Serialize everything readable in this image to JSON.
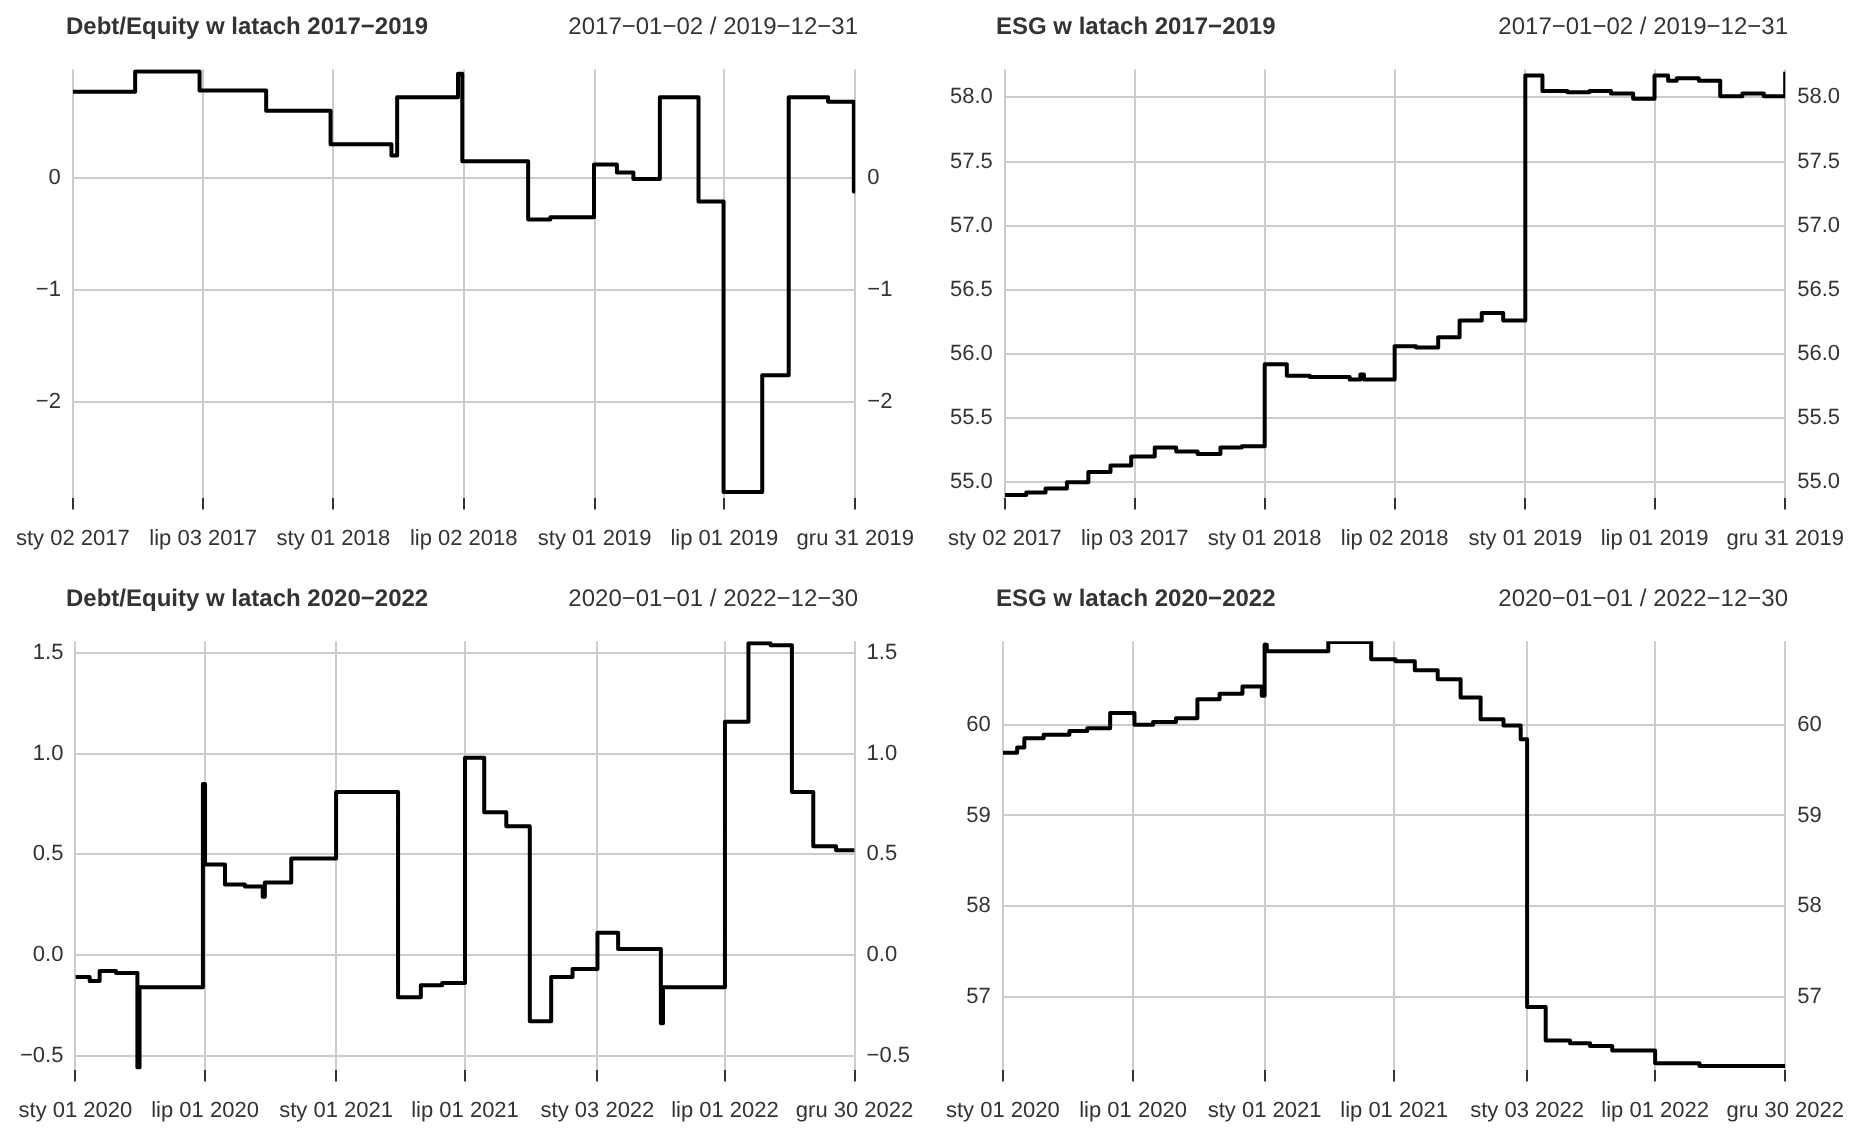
{
  "chart_data": [
    {
      "type": "step",
      "title": "Debt/Equity w latach 2017−2019",
      "subtitle": "2017−01−02 / 2019−12−31",
      "grid": true,
      "xlim": [
        "2017-01-02",
        "2019-12-31"
      ],
      "xticks": [
        {
          "value": "2017-01-02",
          "label": "sty 02 2017"
        },
        {
          "value": "2017-07-03",
          "label": "lip 03 2017"
        },
        {
          "value": "2018-01-01",
          "label": "sty 01 2018"
        },
        {
          "value": "2018-07-02",
          "label": "lip 02 2018"
        },
        {
          "value": "2019-01-01",
          "label": "sty 01 2019"
        },
        {
          "value": "2019-07-01",
          "label": "lip 01 2019"
        },
        {
          "value": "2019-12-31",
          "label": "gru 31 2019"
        }
      ],
      "ylim": [
        -2.85,
        0.97
      ],
      "yticks": [
        {
          "value": -2,
          "label": "−2"
        },
        {
          "value": -1,
          "label": "−1"
        },
        0
      ],
      "y2lim": [
        -2.85,
        0.97
      ],
      "y2ticks": [
        {
          "value": -2,
          "label": "−2"
        },
        {
          "value": -1,
          "label": "−1"
        },
        0
      ],
      "x": [
        "2017-01-02",
        "2017-03-30",
        "2017-06-28",
        "2017-09-29",
        "2017-12-28",
        "2018-03-23",
        "2018-03-31",
        "2018-06-24",
        "2018-06-30",
        "2018-09-30",
        "2018-10-31",
        "2018-12-31",
        "2019-02-01",
        "2019-02-24",
        "2019-04-02",
        "2019-05-26",
        "2019-06-30",
        "2019-08-23",
        "2019-09-29",
        "2019-11-23",
        "2019-12-29",
        "2019-12-31"
      ],
      "series": [
        {
          "color": "#000000",
          "values": [
            0.77,
            0.95,
            0.78,
            0.6,
            0.3,
            0.2,
            0.72,
            0.93,
            0.15,
            -0.37,
            -0.35,
            0.12,
            0.05,
            -0.01,
            0.72,
            -0.21,
            -2.8,
            -1.76,
            0.72,
            0.68,
            -0.12,
            -0.12
          ]
        }
      ]
    },
    {
      "type": "step",
      "title": "ESG w latach 2017−2019",
      "subtitle": "2017−01−02 / 2019−12−31",
      "grid": true,
      "xlim": [
        "2017-01-02",
        "2019-12-31"
      ],
      "xticks": [
        {
          "value": "2017-01-02",
          "label": "sty 02 2017"
        },
        {
          "value": "2017-07-03",
          "label": "lip 03 2017"
        },
        {
          "value": "2018-01-01",
          "label": "sty 01 2018"
        },
        {
          "value": "2018-07-02",
          "label": "lip 02 2018"
        },
        {
          "value": "2019-01-01",
          "label": "sty 01 2019"
        },
        {
          "value": "2019-07-01",
          "label": "lip 01 2019"
        },
        {
          "value": "2019-12-31",
          "label": "gru 31 2019"
        }
      ],
      "ylim": [
        54.88,
        58.22
      ],
      "yticks": [
        {
          "value": 55,
          "label": "55.0"
        },
        55.5,
        {
          "value": 56,
          "label": "56.0"
        },
        56.5,
        {
          "value": 57,
          "label": "57.0"
        },
        57.5,
        {
          "value": 58,
          "label": "58.0"
        }
      ],
      "y2lim": [
        54.88,
        58.22
      ],
      "y2ticks": [
        {
          "value": 55,
          "label": "55.0"
        },
        55.5,
        {
          "value": 56,
          "label": "56.0"
        },
        56.5,
        {
          "value": 57,
          "label": "57.0"
        },
        57.5,
        {
          "value": 58,
          "label": "58.0"
        }
      ],
      "x": [
        "2017-01-02",
        "2017-02-01",
        "2017-02-28",
        "2017-03-30",
        "2017-04-29",
        "2017-05-30",
        "2017-06-28",
        "2017-07-31",
        "2017-08-30",
        "2017-09-29",
        "2017-10-31",
        "2017-11-30",
        "2018-01-01",
        "2018-02-01",
        "2018-03-05",
        "2018-04-30",
        "2018-05-15",
        "2018-05-20",
        "2018-07-02",
        "2018-08-01",
        "2018-09-01",
        "2018-10-01",
        "2018-11-01",
        "2018-12-01",
        "2019-01-01",
        "2019-01-25",
        "2019-03-01",
        "2019-04-01",
        "2019-05-01",
        "2019-06-01",
        "2019-07-01",
        "2019-07-20",
        "2019-08-01",
        "2019-09-01",
        "2019-10-01",
        "2019-11-01",
        "2019-12-01",
        "2019-12-30",
        "2019-12-31"
      ],
      "series": [
        {
          "color": "#000000",
          "values": [
            54.9,
            54.92,
            54.95,
            55.0,
            55.08,
            55.13,
            55.2,
            55.27,
            55.24,
            55.22,
            55.27,
            55.28,
            55.92,
            55.83,
            55.82,
            55.8,
            55.84,
            55.8,
            56.06,
            56.05,
            56.13,
            56.26,
            56.32,
            56.26,
            58.17,
            58.05,
            58.04,
            58.05,
            58.03,
            57.99,
            58.17,
            58.13,
            58.15,
            58.13,
            58.01,
            58.03,
            58.01,
            58.01,
            58.2
          ]
        }
      ]
    },
    {
      "type": "step",
      "title": "Debt/Equity w latach 2020−2022",
      "subtitle": "2020−01−01 / 2022−12−30",
      "grid": true,
      "xlim": [
        "2020-01-01",
        "2022-12-30"
      ],
      "xticks": [
        {
          "value": "2020-01-01",
          "label": "sty 01 2020"
        },
        {
          "value": "2020-07-01",
          "label": "lip 01 2020"
        },
        {
          "value": "2021-01-01",
          "label": "sty 01 2021"
        },
        {
          "value": "2021-07-01",
          "label": "lip 01 2021"
        },
        {
          "value": "2022-01-03",
          "label": "sty 03 2022"
        },
        {
          "value": "2022-07-01",
          "label": "lip 01 2022"
        },
        {
          "value": "2022-12-30",
          "label": "gru 30 2022"
        }
      ],
      "ylim": [
        -0.57,
        1.56
      ],
      "yticks": [
        {
          "value": -0.5,
          "label": "−0.5"
        },
        {
          "value": 0,
          "label": "0.0"
        },
        0.5,
        {
          "value": 1,
          "label": "1.0"
        },
        1.5
      ],
      "y2lim": [
        -0.57,
        1.56
      ],
      "y2ticks": [
        {
          "value": -0.5,
          "label": "−0.5"
        },
        {
          "value": 0,
          "label": "0.0"
        },
        0.5,
        {
          "value": 1,
          "label": "1.0"
        },
        1.5
      ],
      "x": [
        "2020-01-01",
        "2020-01-21",
        "2020-02-04",
        "2020-02-27",
        "2020-03-28",
        "2020-03-31",
        "2020-06-28",
        "2020-07-01",
        "2020-07-29",
        "2020-08-26",
        "2020-09-20",
        "2020-09-23",
        "2020-10-30",
        "2021-01-01",
        "2021-03-29",
        "2021-04-30",
        "2021-05-30",
        "2021-07-01",
        "2021-07-28",
        "2021-08-28",
        "2021-09-30",
        "2021-10-30",
        "2021-11-29",
        "2022-01-03",
        "2022-02-01",
        "2022-04-02",
        "2022-04-05",
        "2022-07-01",
        "2022-08-03",
        "2022-09-03",
        "2022-10-03",
        "2022-11-02",
        "2022-12-04",
        "2022-12-30"
      ],
      "series": [
        {
          "color": "#000000",
          "values": [
            -0.11,
            -0.13,
            -0.08,
            -0.09,
            -0.56,
            -0.16,
            0.85,
            0.45,
            0.35,
            0.34,
            0.29,
            0.36,
            0.48,
            0.81,
            -0.21,
            -0.15,
            -0.14,
            0.98,
            0.71,
            0.64,
            -0.33,
            -0.11,
            -0.07,
            0.11,
            0.03,
            -0.34,
            -0.16,
            1.16,
            1.55,
            1.54,
            0.81,
            0.54,
            0.52,
            0.52
          ]
        }
      ]
    },
    {
      "type": "step",
      "title": "ESG w latach 2020−2022",
      "subtitle": "2020−01−01 / 2022−12−30",
      "grid": true,
      "xlim": [
        "2020-01-01",
        "2022-12-30"
      ],
      "xticks": [
        {
          "value": "2020-01-01",
          "label": "sty 01 2020"
        },
        {
          "value": "2020-07-01",
          "label": "lip 01 2020"
        },
        {
          "value": "2021-01-01",
          "label": "sty 01 2021"
        },
        {
          "value": "2021-07-01",
          "label": "lip 01 2021"
        },
        {
          "value": "2022-01-03",
          "label": "sty 03 2022"
        },
        {
          "value": "2022-07-01",
          "label": "lip 01 2022"
        },
        {
          "value": "2022-12-30",
          "label": "gru 30 2022"
        }
      ],
      "ylim": [
        56.2,
        60.92
      ],
      "yticks": [
        57,
        58,
        59,
        60
      ],
      "y2lim": [
        56.2,
        60.92
      ],
      "y2ticks": [
        57,
        58,
        59,
        60
      ],
      "x": [
        "2020-01-01",
        "2020-01-21",
        "2020-01-31",
        "2020-02-27",
        "2020-04-03",
        "2020-04-28",
        "2020-05-30",
        "2020-07-03",
        "2020-07-29",
        "2020-08-30",
        "2020-09-29",
        "2020-10-30",
        "2020-12-01",
        "2020-12-28",
        "2021-01-01",
        "2021-01-04",
        "2021-03-31",
        "2021-05-30",
        "2021-07-03",
        "2021-07-30",
        "2021-08-31",
        "2021-10-02",
        "2021-10-30",
        "2021-12-01",
        "2021-12-25",
        "2022-01-03",
        "2022-01-29",
        "2022-03-04",
        "2022-04-01",
        "2022-05-02",
        "2022-07-01",
        "2022-09-01",
        "2022-12-30"
      ],
      "series": [
        {
          "color": "#000000",
          "values": [
            59.69,
            59.75,
            59.85,
            59.89,
            59.93,
            59.96,
            60.13,
            60.0,
            60.03,
            60.07,
            60.28,
            60.34,
            60.42,
            60.32,
            60.88,
            60.81,
            60.91,
            60.72,
            60.7,
            60.6,
            60.5,
            60.3,
            60.06,
            59.99,
            59.84,
            56.89,
            56.52,
            56.49,
            56.46,
            56.41,
            56.27,
            56.24,
            56.24
          ]
        }
      ]
    }
  ]
}
